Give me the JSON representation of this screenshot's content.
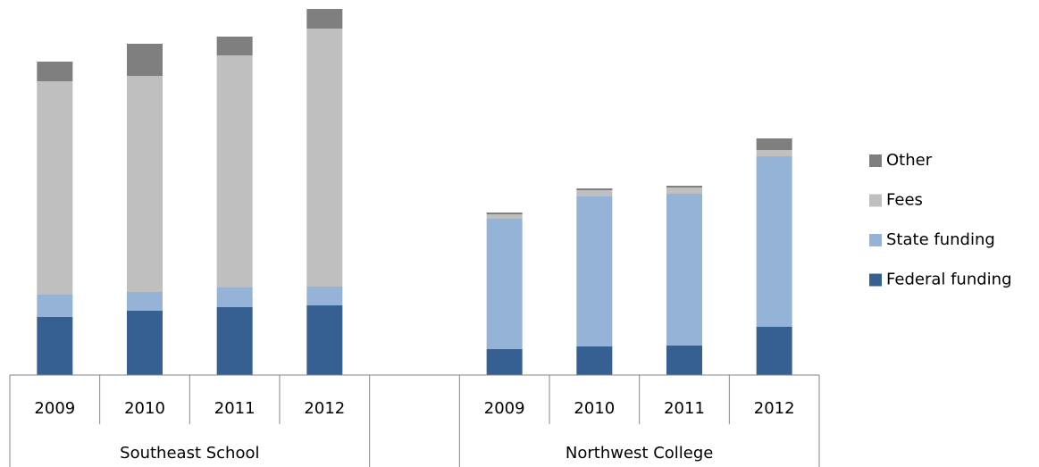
{
  "chart_data": {
    "type": "stacked-bar",
    "categories": [
      "2009",
      "2010",
      "2011",
      "2012",
      null,
      "2009",
      "2010",
      "2011",
      "2012"
    ],
    "groups": [
      {
        "name": "Southeast School",
        "size": 4
      },
      {
        "name": null,
        "size": 1
      },
      {
        "name": "Northwest College",
        "size": 4
      }
    ],
    "series": [
      {
        "name": "Federal funding",
        "color": "#376092",
        "values": [
          65,
          72,
          76,
          78,
          null,
          29,
          32,
          33,
          54
        ]
      },
      {
        "name": "State funding",
        "color": "#95b3d7",
        "values": [
          25,
          21,
          22,
          21,
          null,
          146,
          168,
          170,
          191
        ]
      },
      {
        "name": "Fees",
        "color": "#bfbfbf",
        "values": [
          239,
          242,
          260,
          289,
          null,
          5,
          7,
          7,
          7
        ]
      },
      {
        "name": "Other",
        "color": "#7f7f7f",
        "values": [
          22,
          36,
          21,
          22,
          null,
          2,
          2,
          2,
          13
        ]
      }
    ],
    "ylim": [
      0,
      420
    ],
    "legend": "right"
  }
}
